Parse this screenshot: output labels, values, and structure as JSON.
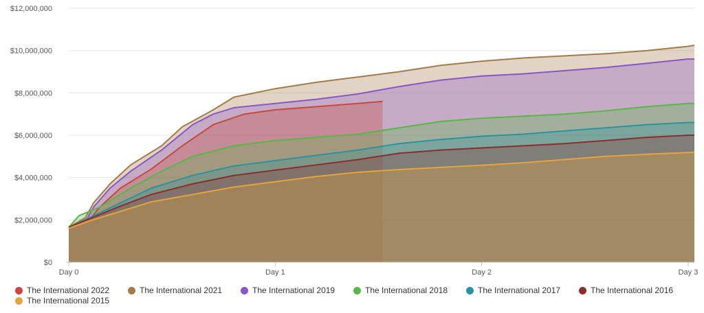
{
  "chart_data": {
    "type": "area",
    "x_categories": [
      "Day 0",
      "Day 1",
      "Day 2",
      "Day 3"
    ],
    "xlim": [
      0,
      3.03
    ],
    "ylim": [
      0,
      12000000
    ],
    "y_ticks": [
      0,
      2000000,
      4000000,
      6000000,
      8000000,
      10000000,
      12000000
    ],
    "y_tick_labels": [
      "$0",
      "$2,000,000",
      "$4,000,000",
      "$6,000,000",
      "$8,000,000",
      "$10,000,000",
      "$12,000,000"
    ],
    "grid": true,
    "legend_position": "bottom",
    "series": [
      {
        "name": "The International 2015",
        "color": "#e6a43c",
        "points": [
          [
            0,
            1600000
          ],
          [
            0.1,
            1950000
          ],
          [
            0.25,
            2400000
          ],
          [
            0.4,
            2850000
          ],
          [
            0.6,
            3200000
          ],
          [
            0.8,
            3550000
          ],
          [
            1.0,
            3800000
          ],
          [
            1.2,
            4050000
          ],
          [
            1.4,
            4250000
          ],
          [
            1.6,
            4380000
          ],
          [
            1.8,
            4480000
          ],
          [
            2.0,
            4580000
          ],
          [
            2.2,
            4700000
          ],
          [
            2.4,
            4850000
          ],
          [
            2.6,
            5000000
          ],
          [
            2.8,
            5100000
          ],
          [
            3.0,
            5180000
          ],
          [
            3.03,
            5200000
          ]
        ]
      },
      {
        "name": "The International 2016",
        "color": "#8b2d2d",
        "points": [
          [
            0,
            1650000
          ],
          [
            0.1,
            2050000
          ],
          [
            0.25,
            2650000
          ],
          [
            0.4,
            3200000
          ],
          [
            0.6,
            3700000
          ],
          [
            0.8,
            4100000
          ],
          [
            1.0,
            4350000
          ],
          [
            1.2,
            4600000
          ],
          [
            1.4,
            4850000
          ],
          [
            1.6,
            5150000
          ],
          [
            1.8,
            5300000
          ],
          [
            2.0,
            5400000
          ],
          [
            2.2,
            5500000
          ],
          [
            2.4,
            5600000
          ],
          [
            2.6,
            5750000
          ],
          [
            2.8,
            5900000
          ],
          [
            3.0,
            6000000
          ],
          [
            3.03,
            6000000
          ]
        ]
      },
      {
        "name": "The International 2017",
        "color": "#2a93a0",
        "points": [
          [
            0,
            1650000
          ],
          [
            0.1,
            2100000
          ],
          [
            0.25,
            2800000
          ],
          [
            0.4,
            3500000
          ],
          [
            0.6,
            4100000
          ],
          [
            0.8,
            4550000
          ],
          [
            1.0,
            4800000
          ],
          [
            1.2,
            5050000
          ],
          [
            1.4,
            5300000
          ],
          [
            1.6,
            5600000
          ],
          [
            1.8,
            5800000
          ],
          [
            2.0,
            5950000
          ],
          [
            2.2,
            6050000
          ],
          [
            2.4,
            6200000
          ],
          [
            2.6,
            6350000
          ],
          [
            2.8,
            6500000
          ],
          [
            3.0,
            6600000
          ],
          [
            3.03,
            6600000
          ]
        ]
      },
      {
        "name": "The International 2018",
        "color": "#58b846",
        "points": [
          [
            0,
            1650000
          ],
          [
            0.05,
            2200000
          ],
          [
            0.15,
            2600000
          ],
          [
            0.3,
            3500000
          ],
          [
            0.45,
            4300000
          ],
          [
            0.6,
            5000000
          ],
          [
            0.8,
            5500000
          ],
          [
            1.0,
            5750000
          ],
          [
            1.2,
            5900000
          ],
          [
            1.4,
            6050000
          ],
          [
            1.6,
            6350000
          ],
          [
            1.8,
            6650000
          ],
          [
            2.0,
            6800000
          ],
          [
            2.2,
            6900000
          ],
          [
            2.4,
            7000000
          ],
          [
            2.6,
            7150000
          ],
          [
            2.8,
            7350000
          ],
          [
            3.0,
            7500000
          ],
          [
            3.03,
            7500000
          ]
        ]
      },
      {
        "name": "The International 2019",
        "color": "#8a55c7",
        "points": [
          [
            0,
            1650000
          ],
          [
            0.08,
            1900000
          ],
          [
            0.12,
            2600000
          ],
          [
            0.2,
            3500000
          ],
          [
            0.3,
            4300000
          ],
          [
            0.45,
            5300000
          ],
          [
            0.6,
            6500000
          ],
          [
            0.7,
            7000000
          ],
          [
            0.8,
            7300000
          ],
          [
            1.0,
            7500000
          ],
          [
            1.2,
            7700000
          ],
          [
            1.4,
            7950000
          ],
          [
            1.6,
            8300000
          ],
          [
            1.8,
            8600000
          ],
          [
            2.0,
            8800000
          ],
          [
            2.2,
            8900000
          ],
          [
            2.4,
            9050000
          ],
          [
            2.6,
            9200000
          ],
          [
            2.8,
            9400000
          ],
          [
            3.0,
            9600000
          ],
          [
            3.03,
            9600000
          ]
        ]
      },
      {
        "name": "The International 2021",
        "color": "#a57a48",
        "points": [
          [
            0,
            1650000
          ],
          [
            0.08,
            2100000
          ],
          [
            0.12,
            2800000
          ],
          [
            0.2,
            3700000
          ],
          [
            0.3,
            4600000
          ],
          [
            0.45,
            5500000
          ],
          [
            0.55,
            6400000
          ],
          [
            0.7,
            7200000
          ],
          [
            0.8,
            7800000
          ],
          [
            1.0,
            8200000
          ],
          [
            1.2,
            8500000
          ],
          [
            1.4,
            8750000
          ],
          [
            1.6,
            9000000
          ],
          [
            1.8,
            9300000
          ],
          [
            2.0,
            9500000
          ],
          [
            2.2,
            9650000
          ],
          [
            2.4,
            9750000
          ],
          [
            2.6,
            9850000
          ],
          [
            2.8,
            10000000
          ],
          [
            3.0,
            10200000
          ],
          [
            3.03,
            10250000
          ]
        ]
      },
      {
        "name": "The International 2022",
        "color": "#c9473d",
        "points": [
          [
            0,
            1650000
          ],
          [
            0.1,
            2000000
          ],
          [
            0.15,
            2600000
          ],
          [
            0.25,
            3500000
          ],
          [
            0.4,
            4400000
          ],
          [
            0.55,
            5500000
          ],
          [
            0.7,
            6500000
          ],
          [
            0.85,
            7000000
          ],
          [
            1.0,
            7200000
          ],
          [
            1.2,
            7350000
          ],
          [
            1.4,
            7500000
          ],
          [
            1.52,
            7600000
          ]
        ]
      }
    ]
  }
}
